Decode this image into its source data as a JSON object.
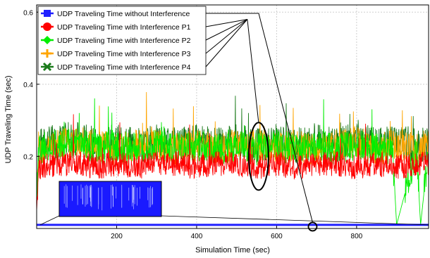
{
  "chart_data": {
    "type": "line",
    "title": "",
    "xlabel": "Simulation Time (sec)",
    "ylabel": "UDP Traveling Time (sec)",
    "xlim": [
      0,
      980
    ],
    "ylim": [
      0,
      0.62
    ],
    "x_ticks": [
      200,
      400,
      600,
      800
    ],
    "y_ticks": [
      0.2,
      0.4,
      0.6
    ],
    "x_tick_labels": [
      "200",
      "400",
      "600",
      "800"
    ],
    "y_tick_labels": [
      "0.2",
      "0.4",
      "0.6"
    ],
    "grid": true,
    "legend_position": "top-left",
    "series": [
      {
        "name": "UDP Traveling Time without Interference",
        "color": "#1f1fff",
        "marker": "square",
        "x": [
          0,
          100,
          200,
          300,
          400,
          500,
          600,
          700,
          800,
          900,
          980
        ],
        "y": [
          0.01,
          0.01,
          0.01,
          0.01,
          0.01,
          0.01,
          0.01,
          0.01,
          0.01,
          0.01,
          0.01
        ]
      },
      {
        "name": "UDP Traveling Time with Interference P1",
        "color": "#ff0000",
        "marker": "circle",
        "x": [
          0,
          5,
          50,
          100,
          150,
          200,
          250,
          300,
          350,
          400,
          450,
          500,
          550,
          600,
          650,
          700,
          750,
          800,
          850,
          900,
          950,
          980
        ],
        "y": [
          0.05,
          0.17,
          0.18,
          0.18,
          0.17,
          0.18,
          0.17,
          0.18,
          0.18,
          0.17,
          0.18,
          0.18,
          0.17,
          0.18,
          0.17,
          0.18,
          0.18,
          0.17,
          0.18,
          0.17,
          0.18,
          0.18
        ]
      },
      {
        "name": "UDP Traveling Time with Interference P2",
        "color": "#00ee00",
        "marker": "diamond",
        "x": [
          0,
          5,
          50,
          100,
          150,
          200,
          250,
          300,
          350,
          400,
          450,
          500,
          550,
          600,
          650,
          700,
          750,
          800,
          850,
          890,
          900,
          950,
          960,
          980
        ],
        "y": [
          0.07,
          0.22,
          0.23,
          0.24,
          0.22,
          0.23,
          0.22,
          0.23,
          0.22,
          0.23,
          0.22,
          0.23,
          0.22,
          0.23,
          0.22,
          0.23,
          0.22,
          0.23,
          0.22,
          0.22,
          0.01,
          0.22,
          0.01,
          0.22
        ]
      },
      {
        "name": "UDP Traveling Time with Interference P3",
        "color": "#ffa500",
        "marker": "plus",
        "x": [
          0,
          5,
          50,
          100,
          150,
          200,
          250,
          300,
          350,
          400,
          450,
          500,
          550,
          600,
          650,
          700,
          750,
          800,
          850,
          900,
          950,
          980
        ],
        "y": [
          0.07,
          0.22,
          0.23,
          0.24,
          0.23,
          0.22,
          0.23,
          0.23,
          0.22,
          0.23,
          0.22,
          0.23,
          0.23,
          0.22,
          0.23,
          0.22,
          0.23,
          0.24,
          0.22,
          0.23,
          0.22,
          0.23
        ]
      },
      {
        "name": "UDP Traveling Time with Interference P4",
        "color": "#1a7a1a",
        "marker": "x",
        "x": [
          0,
          5,
          50,
          100,
          150,
          200,
          250,
          300,
          350,
          400,
          450,
          500,
          550,
          600,
          650,
          700,
          750,
          800,
          850,
          900,
          950,
          980
        ],
        "y": [
          0.07,
          0.23,
          0.24,
          0.25,
          0.23,
          0.24,
          0.23,
          0.24,
          0.23,
          0.24,
          0.23,
          0.24,
          0.23,
          0.24,
          0.23,
          0.24,
          0.23,
          0.25,
          0.23,
          0.24,
          0.23,
          0.24
        ]
      }
    ],
    "annotations": [
      {
        "type": "ellipse",
        "x": 555,
        "y": 0.2
      },
      {
        "type": "circle",
        "x": 690,
        "y": 0.005
      },
      {
        "type": "inset",
        "label": "zoomed view of series without interference"
      }
    ]
  }
}
